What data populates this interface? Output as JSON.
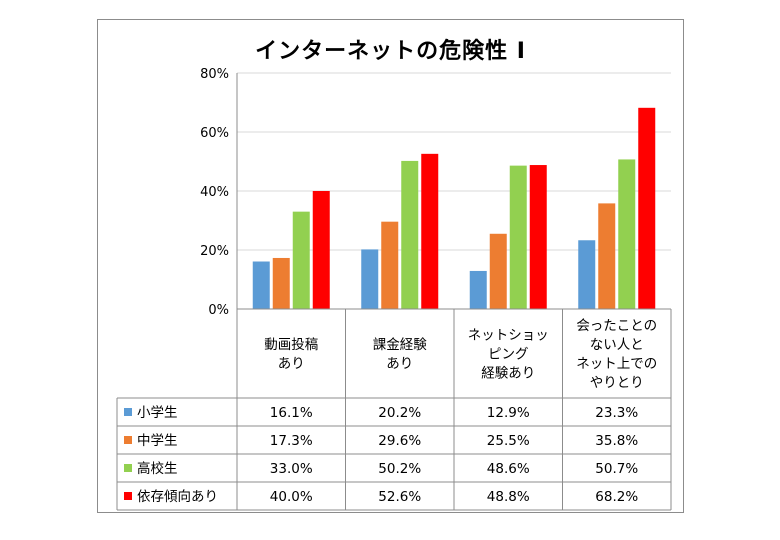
{
  "chart_data": {
    "type": "bar",
    "title": "インターネットの危険性 I",
    "categories": [
      [
        "動画投稿",
        "あり"
      ],
      [
        "課金経験",
        "あり"
      ],
      [
        "ネットショッ",
        "ピング",
        "経験あり"
      ],
      [
        "会ったことの",
        "ない人と",
        "ネット上での",
        "やりとり"
      ]
    ],
    "series": [
      {
        "name": "小学生",
        "color": "#5b9bd5",
        "values": [
          16.1,
          20.2,
          12.9,
          23.3
        ],
        "labels": [
          "16.1%",
          "20.2%",
          "12.9%",
          "23.3%"
        ]
      },
      {
        "name": "中学生",
        "color": "#ed7d31",
        "values": [
          17.3,
          29.6,
          25.5,
          35.8
        ],
        "labels": [
          "17.3%",
          "29.6%",
          "25.5%",
          "35.8%"
        ]
      },
      {
        "name": "高校生",
        "color": "#92d050",
        "values": [
          33.0,
          50.2,
          48.6,
          50.7
        ],
        "labels": [
          "33.0%",
          "50.2%",
          "48.6%",
          "50.7%"
        ]
      },
      {
        "name": "依存傾向あり",
        "color": "#ff0000",
        "values": [
          40.0,
          52.6,
          48.8,
          68.2
        ],
        "labels": [
          "40.0%",
          "52.6%",
          "48.8%",
          "68.2%"
        ]
      }
    ],
    "ylim": [
      0,
      80
    ],
    "yticks": [
      "0%",
      "20%",
      "40%",
      "60%",
      "80%"
    ],
    "grid": true,
    "legend": "data-table"
  }
}
